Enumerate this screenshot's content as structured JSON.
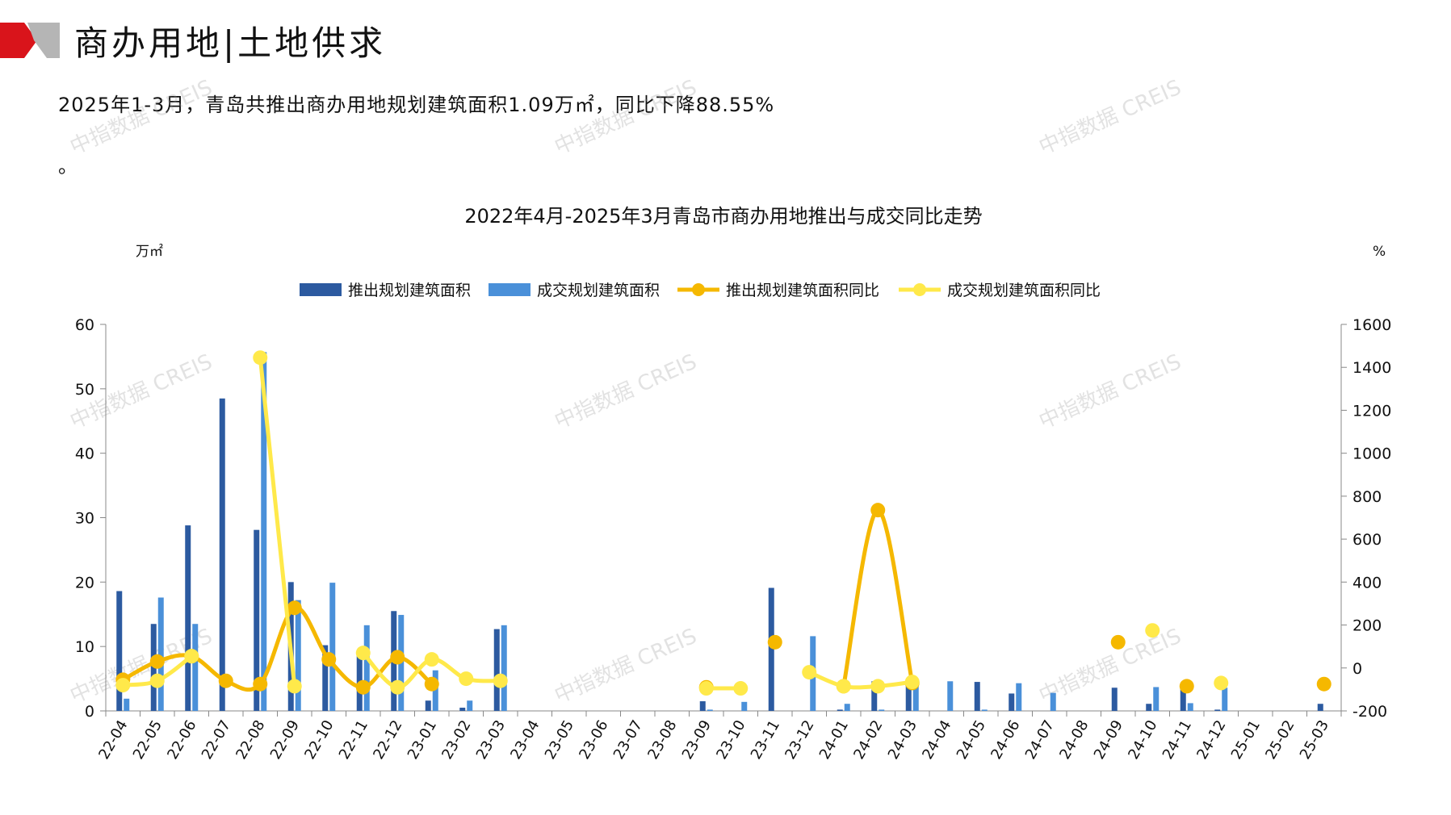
{
  "page": {
    "title": "商办用地|土地供求",
    "summary": "2025年1-3月，青岛共推出商办用地规划建筑面积1.09万㎡，同比下降88.55%",
    "summary_tail": "。",
    "watermark": "中指数据 CREIS"
  },
  "colors": {
    "push_area": "#2c5aa0",
    "deal_area": "#4a90d9",
    "push_yoy": "#f5b800",
    "deal_yoy": "#ffe94a",
    "brand_red": "#d9141b",
    "brand_gray": "#b5b5b5"
  },
  "chart_data": {
    "type": "bar",
    "title": "2022年4月-2025年3月青岛市商办用地推出与成交同比走势",
    "ylabel_left": "万㎡",
    "ylabel_right": "%",
    "ylim_left": [
      0,
      60
    ],
    "yticks_left": [
      0,
      10,
      20,
      30,
      40,
      50,
      60
    ],
    "ylim_right": [
      -200,
      1600
    ],
    "yticks_right": [
      -200,
      0,
      200,
      400,
      600,
      800,
      1000,
      1200,
      1400,
      1600
    ],
    "legend_position": "top-center",
    "grid": false,
    "categories": [
      "22-04",
      "22-05",
      "22-06",
      "22-07",
      "22-08",
      "22-09",
      "22-10",
      "22-11",
      "22-12",
      "23-01",
      "23-02",
      "23-03",
      "23-04",
      "23-05",
      "23-06",
      "23-07",
      "23-08",
      "23-09",
      "23-10",
      "23-11",
      "23-12",
      "24-01",
      "24-02",
      "24-03",
      "24-04",
      "24-05",
      "24-06",
      "24-07",
      "24-08",
      "24-09",
      "24-10",
      "24-11",
      "24-12",
      "25-01",
      "25-02",
      "25-03"
    ],
    "series": [
      {
        "name": "推出规划建筑面积",
        "kind": "bar",
        "axis": "left",
        "values": [
          18.6,
          13.5,
          28.8,
          48.5,
          28.1,
          20.0,
          10.2,
          8.9,
          15.5,
          1.6,
          0.5,
          12.7,
          null,
          null,
          null,
          null,
          null,
          1.5,
          null,
          19.1,
          null,
          0.2,
          4.6,
          4.6,
          null,
          4.5,
          2.7,
          null,
          null,
          3.6,
          1.1,
          3.6,
          0.2,
          null,
          null,
          1.1
        ]
      },
      {
        "name": "成交规划建筑面积",
        "kind": "bar",
        "axis": "left",
        "values": [
          1.9,
          17.6,
          13.5,
          null,
          55.7,
          17.2,
          19.9,
          13.3,
          14.9,
          6.3,
          1.6,
          13.3,
          null,
          null,
          null,
          null,
          null,
          0.2,
          1.4,
          null,
          11.6,
          1.1,
          0.2,
          4.7,
          4.6,
          0.2,
          4.3,
          2.8,
          null,
          null,
          3.7,
          1.2,
          3.6,
          null,
          null,
          null
        ]
      },
      {
        "name": "推出规划建筑面积同比",
        "kind": "line",
        "axis": "right",
        "values": [
          -55,
          30,
          55,
          -60,
          -75,
          280,
          40,
          -90,
          50,
          -75,
          null,
          null,
          null,
          null,
          null,
          null,
          null,
          -90,
          null,
          120,
          null,
          -85,
          735,
          -70,
          null,
          null,
          null,
          null,
          null,
          120,
          null,
          -85,
          null,
          null,
          null,
          -75
        ]
      },
      {
        "name": "成交规划建筑面积同比",
        "kind": "line",
        "axis": "right",
        "values": [
          -80,
          -60,
          55,
          null,
          1445,
          -85,
          null,
          70,
          -90,
          40,
          -50,
          -60,
          null,
          null,
          null,
          null,
          null,
          -95,
          -95,
          null,
          -20,
          -85,
          -85,
          -65,
          null,
          null,
          null,
          null,
          null,
          null,
          175,
          null,
          -70,
          null,
          null,
          null
        ]
      }
    ]
  }
}
